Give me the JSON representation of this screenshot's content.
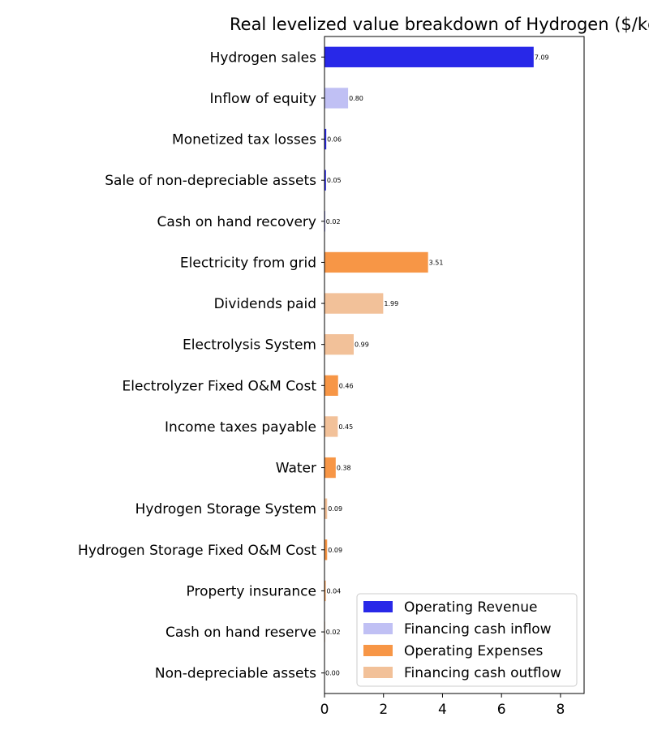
{
  "chart_data": {
    "type": "bar",
    "orientation": "horizontal",
    "title": "Real levelized value breakdown of Hydrogen ($/kg)",
    "xlabel": "",
    "ylabel": "",
    "xlim": [
      0,
      8.8
    ],
    "xticks": [
      0,
      2,
      4,
      6,
      8
    ],
    "grid": false,
    "legend_position": "bottom-right",
    "categories": [
      "Hydrogen sales",
      "Inflow of equity",
      "Monetized tax losses",
      "Sale of non-depreciable assets",
      "Cash on hand recovery",
      "Electricity from grid",
      "Dividends paid",
      "Electrolysis System",
      "Electrolyzer Fixed O&M Cost",
      "Income taxes payable",
      "Water",
      "Hydrogen Storage System",
      "Hydrogen Storage Fixed O&M Cost",
      "Property insurance",
      "Cash on hand reserve",
      "Non-depreciable assets"
    ],
    "values": [
      7.09,
      0.8,
      0.06,
      0.05,
      0.02,
      3.51,
      1.99,
      0.99,
      0.46,
      0.45,
      0.38,
      0.09,
      0.09,
      0.04,
      0.02,
      0.0
    ],
    "value_labels": [
      "7.09",
      "0.80",
      "0.06",
      "0.05",
      "0.02",
      "3.51",
      "1.99",
      "0.99",
      "0.46",
      "0.45",
      "0.38",
      "0.09",
      "0.09",
      "0.04",
      "0.02",
      "0.00"
    ],
    "groups": [
      "Operating Revenue",
      "Financing cash inflow",
      "Operating Revenue",
      "Operating Revenue",
      "Operating Revenue",
      "Operating Expenses",
      "Financing cash outflow",
      "Financing cash outflow",
      "Operating Expenses",
      "Financing cash outflow",
      "Operating Expenses",
      "Financing cash outflow",
      "Operating Expenses",
      "Operating Expenses",
      "Financing cash outflow",
      "Financing cash outflow"
    ],
    "legend": [
      {
        "name": "Operating Revenue",
        "color": "#2828e8"
      },
      {
        "name": "Financing cash inflow",
        "color": "#c0c0f4"
      },
      {
        "name": "Operating Expenses",
        "color": "#f79646"
      },
      {
        "name": "Financing cash outflow",
        "color": "#f2c199"
      }
    ]
  }
}
